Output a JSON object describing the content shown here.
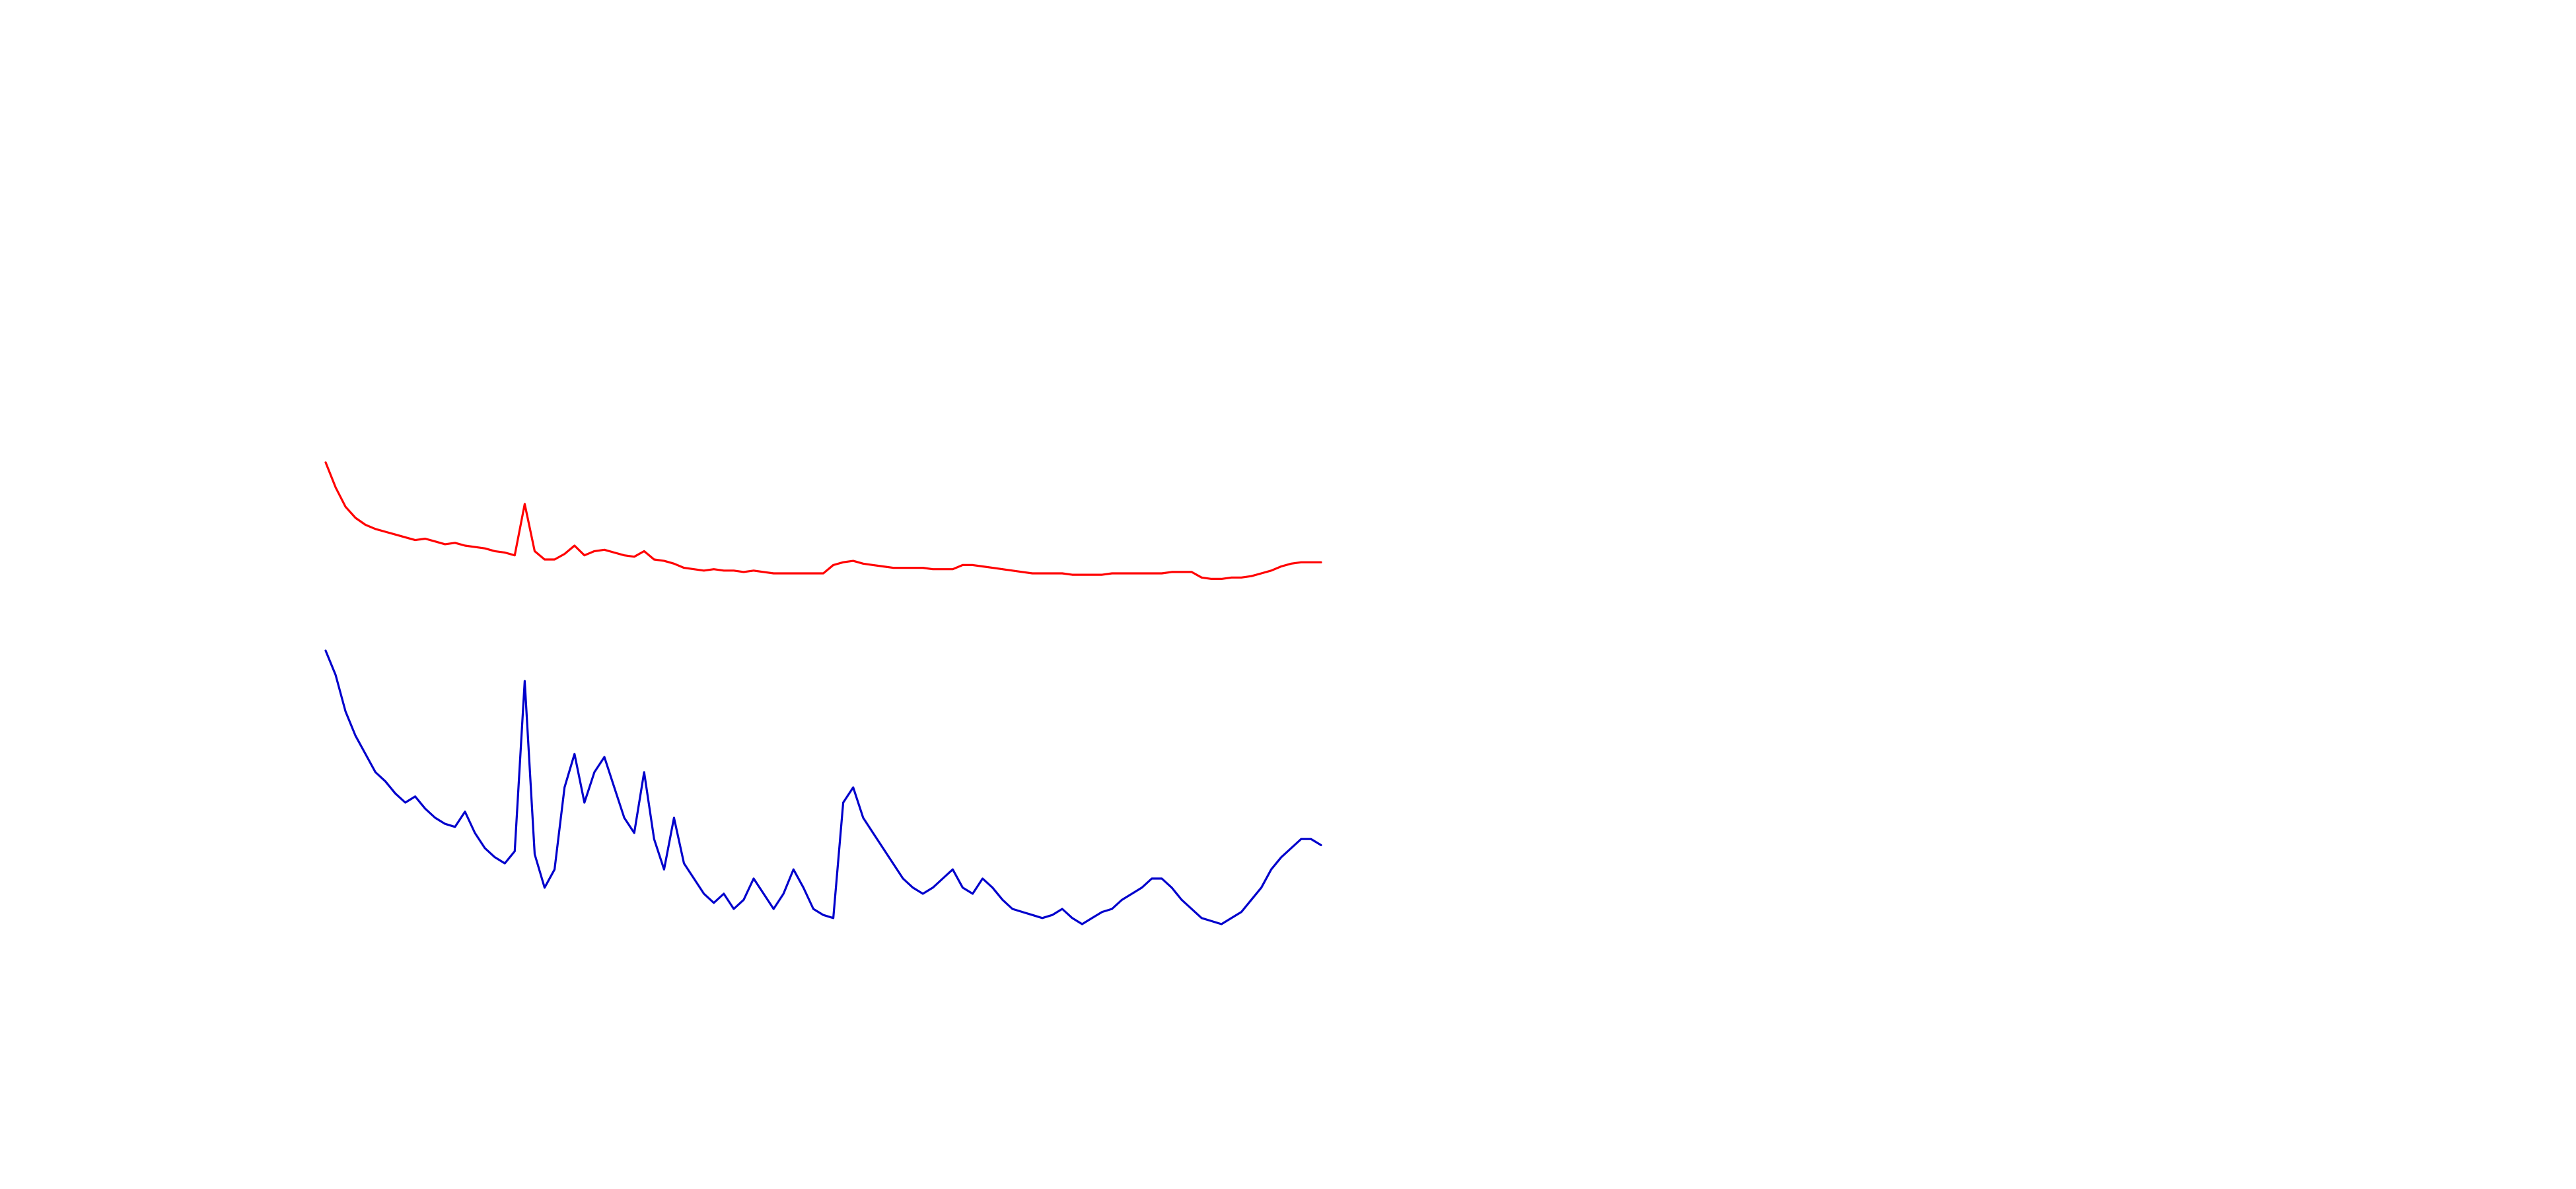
{
  "chart_data": [
    {
      "type": "line",
      "grid": false,
      "axes_visible": false,
      "legend": "none",
      "x": [
        0,
        1,
        2,
        3,
        4,
        5,
        6,
        7,
        8,
        9,
        10,
        11,
        12,
        13,
        14,
        15,
        16,
        17,
        18,
        19,
        20,
        21,
        22,
        23,
        24,
        25,
        26,
        27,
        28,
        29,
        30,
        31,
        32,
        33,
        34,
        35,
        36,
        37,
        38,
        39,
        40,
        41,
        42,
        43,
        44,
        45,
        46,
        47,
        48,
        49,
        50,
        51,
        52,
        53,
        54,
        55,
        56,
        57,
        58,
        59,
        60,
        61,
        62,
        63,
        64,
        65,
        66,
        67,
        68,
        69,
        70,
        71,
        72,
        73,
        74,
        75,
        76,
        77,
        78,
        79,
        80,
        81,
        82,
        83,
        84,
        85,
        86,
        87,
        88,
        89,
        90,
        91,
        92,
        93,
        94,
        95,
        96,
        97,
        98,
        99,
        100
      ],
      "xlim": [
        0,
        100
      ],
      "ylim": [
        0,
        1
      ],
      "series": [
        {
          "color": "#ff0000",
          "values": [
            1.0,
            0.82,
            0.68,
            0.6,
            0.55,
            0.52,
            0.5,
            0.48,
            0.46,
            0.44,
            0.45,
            0.43,
            0.41,
            0.42,
            0.4,
            0.39,
            0.38,
            0.36,
            0.35,
            0.33,
            0.7,
            0.36,
            0.3,
            0.3,
            0.34,
            0.4,
            0.33,
            0.36,
            0.37,
            0.35,
            0.33,
            0.32,
            0.36,
            0.3,
            0.29,
            0.27,
            0.24,
            0.23,
            0.22,
            0.23,
            0.22,
            0.22,
            0.21,
            0.22,
            0.21,
            0.2,
            0.2,
            0.2,
            0.2,
            0.2,
            0.2,
            0.26,
            0.28,
            0.29,
            0.27,
            0.26,
            0.25,
            0.24,
            0.24,
            0.24,
            0.24,
            0.23,
            0.23,
            0.23,
            0.26,
            0.26,
            0.25,
            0.24,
            0.23,
            0.22,
            0.21,
            0.2,
            0.2,
            0.2,
            0.2,
            0.19,
            0.19,
            0.19,
            0.19,
            0.2,
            0.2,
            0.2,
            0.2,
            0.2,
            0.2,
            0.21,
            0.21,
            0.21,
            0.17,
            0.16,
            0.16,
            0.17,
            0.17,
            0.18,
            0.2,
            0.22,
            0.25,
            0.27,
            0.28,
            0.28,
            0.28
          ]
        },
        {
          "color": "#0000cc",
          "values": [
            1.0,
            0.92,
            0.8,
            0.72,
            0.66,
            0.6,
            0.57,
            0.53,
            0.5,
            0.52,
            0.48,
            0.45,
            0.43,
            0.42,
            0.47,
            0.4,
            0.35,
            0.32,
            0.3,
            0.34,
            0.9,
            0.33,
            0.22,
            0.28,
            0.55,
            0.66,
            0.5,
            0.6,
            0.65,
            0.55,
            0.45,
            0.4,
            0.6,
            0.38,
            0.28,
            0.45,
            0.3,
            0.25,
            0.2,
            0.17,
            0.2,
            0.15,
            0.18,
            0.25,
            0.2,
            0.15,
            0.2,
            0.28,
            0.22,
            0.15,
            0.13,
            0.12,
            0.5,
            0.55,
            0.45,
            0.4,
            0.35,
            0.3,
            0.25,
            0.22,
            0.2,
            0.22,
            0.25,
            0.28,
            0.22,
            0.2,
            0.25,
            0.22,
            0.18,
            0.15,
            0.14,
            0.13,
            0.12,
            0.13,
            0.15,
            0.12,
            0.1,
            0.12,
            0.14,
            0.15,
            0.18,
            0.2,
            0.22,
            0.25,
            0.25,
            0.22,
            0.18,
            0.15,
            0.12,
            0.11,
            0.1,
            0.12,
            0.14,
            0.18,
            0.22,
            0.28,
            0.32,
            0.35,
            0.38,
            0.38,
            0.36
          ]
        }
      ]
    }
  ]
}
